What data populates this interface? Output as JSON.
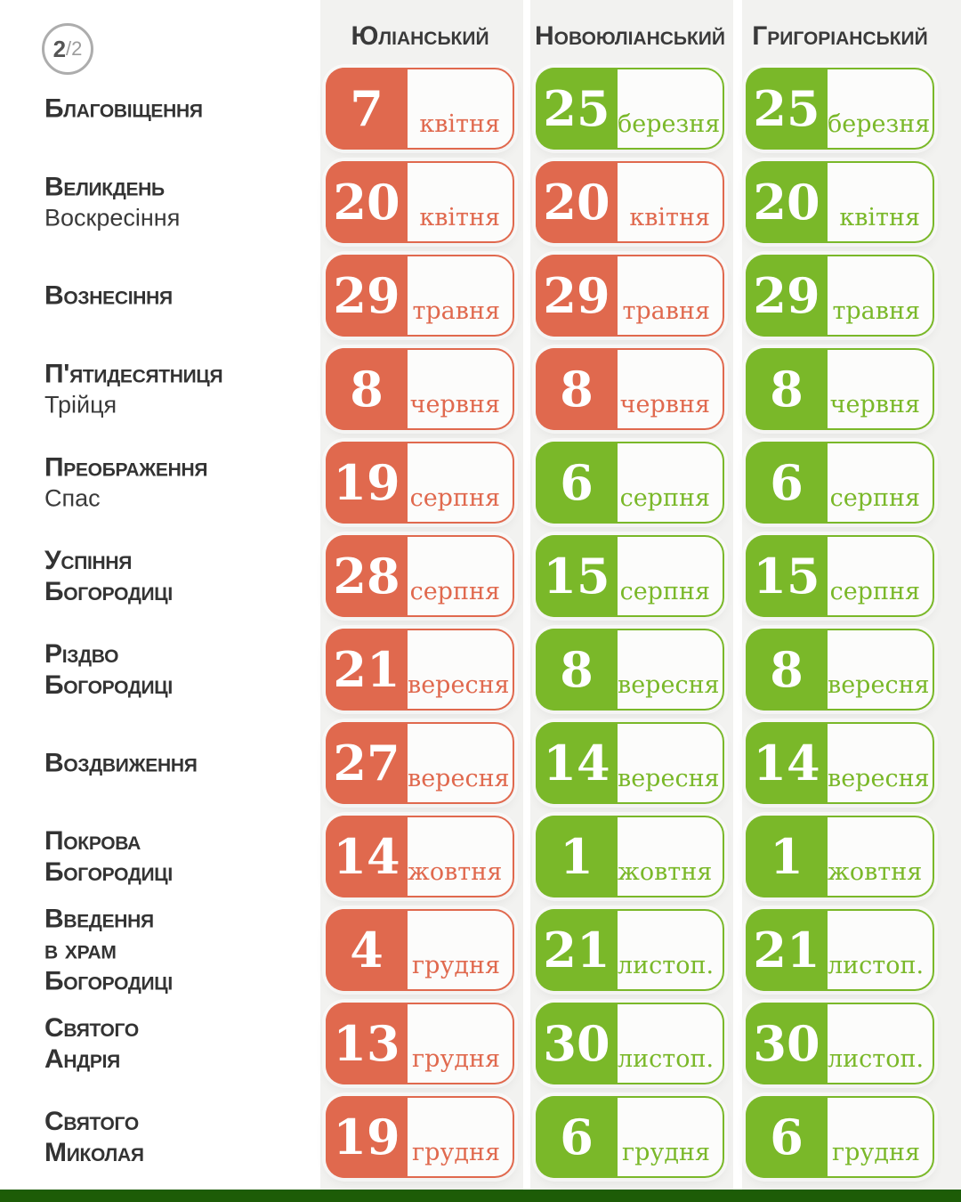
{
  "badge": {
    "page": "2",
    "rest": "/2"
  },
  "columns": [
    {
      "id": "julian",
      "label": "Юліанський"
    },
    {
      "id": "new-julian",
      "label": "Новоюліанський"
    },
    {
      "id": "gregorian",
      "label": "Григоріанський"
    }
  ],
  "colors": {
    "red": "#E0694E",
    "green": "#7AB829",
    "strip": "#F2F2F0",
    "footer_bar": "#1D5C07",
    "text": "#333333"
  },
  "rows": [
    {
      "name_lines": [
        "Благовіщення"
      ],
      "subtitle": "",
      "cells": [
        {
          "day": "7",
          "month": "квітня",
          "color": "red"
        },
        {
          "day": "25",
          "month": "березня",
          "color": "green"
        },
        {
          "day": "25",
          "month": "березня",
          "color": "green"
        }
      ]
    },
    {
      "name_lines": [
        "Великдень"
      ],
      "subtitle": "Воскресіння",
      "cells": [
        {
          "day": "20",
          "month": "квітня",
          "color": "red"
        },
        {
          "day": "20",
          "month": "квітня",
          "color": "red"
        },
        {
          "day": "20",
          "month": "квітня",
          "color": "green"
        }
      ]
    },
    {
      "name_lines": [
        "Вознесіння"
      ],
      "subtitle": "",
      "cells": [
        {
          "day": "29",
          "month": "травня",
          "color": "red"
        },
        {
          "day": "29",
          "month": "травня",
          "color": "red"
        },
        {
          "day": "29",
          "month": "травня",
          "color": "green"
        }
      ]
    },
    {
      "name_lines": [
        "П'ятидесятниця"
      ],
      "subtitle": "Трійця",
      "cells": [
        {
          "day": "8",
          "month": "червня",
          "color": "red"
        },
        {
          "day": "8",
          "month": "червня",
          "color": "red"
        },
        {
          "day": "8",
          "month": "червня",
          "color": "green"
        }
      ]
    },
    {
      "name_lines": [
        "Преображення"
      ],
      "subtitle": "Спас",
      "cells": [
        {
          "day": "19",
          "month": "серпня",
          "color": "red"
        },
        {
          "day": "6",
          "month": "серпня",
          "color": "green"
        },
        {
          "day": "6",
          "month": "серпня",
          "color": "green"
        }
      ]
    },
    {
      "name_lines": [
        "Успіння",
        "Богородиці"
      ],
      "subtitle": "",
      "cells": [
        {
          "day": "28",
          "month": "серпня",
          "color": "red"
        },
        {
          "day": "15",
          "month": "серпня",
          "color": "green"
        },
        {
          "day": "15",
          "month": "серпня",
          "color": "green"
        }
      ]
    },
    {
      "name_lines": [
        "Різдво",
        "Богородиці"
      ],
      "subtitle": "",
      "cells": [
        {
          "day": "21",
          "month": "вересня",
          "color": "red"
        },
        {
          "day": "8",
          "month": "вересня",
          "color": "green"
        },
        {
          "day": "8",
          "month": "вересня",
          "color": "green"
        }
      ]
    },
    {
      "name_lines": [
        "Воздвиження"
      ],
      "subtitle": "",
      "cells": [
        {
          "day": "27",
          "month": "вересня",
          "color": "red"
        },
        {
          "day": "14",
          "month": "вересня",
          "color": "green"
        },
        {
          "day": "14",
          "month": "вересня",
          "color": "green"
        }
      ]
    },
    {
      "name_lines": [
        "Покрова",
        "Богородиці"
      ],
      "subtitle": "",
      "cells": [
        {
          "day": "14",
          "month": "жовтня",
          "color": "red"
        },
        {
          "day": "1",
          "month": "жовтня",
          "color": "green"
        },
        {
          "day": "1",
          "month": "жовтня",
          "color": "green"
        }
      ]
    },
    {
      "name_lines": [
        "Введення",
        "в храм",
        "Богородиці"
      ],
      "subtitle": "",
      "cells": [
        {
          "day": "4",
          "month": "грудня",
          "color": "red"
        },
        {
          "day": "21",
          "month": "листоп.",
          "color": "green"
        },
        {
          "day": "21",
          "month": "листоп.",
          "color": "green"
        }
      ]
    },
    {
      "name_lines": [
        "Святого",
        "Андрія"
      ],
      "subtitle": "",
      "cells": [
        {
          "day": "13",
          "month": "грудня",
          "color": "red"
        },
        {
          "day": "30",
          "month": "листоп.",
          "color": "green"
        },
        {
          "day": "30",
          "month": "листоп.",
          "color": "green"
        }
      ]
    },
    {
      "name_lines": [
        "Святого",
        "Миколая"
      ],
      "subtitle": "",
      "cells": [
        {
          "day": "19",
          "month": "грудня",
          "color": "red"
        },
        {
          "day": "6",
          "month": "грудня",
          "color": "green"
        },
        {
          "day": "6",
          "month": "грудня",
          "color": "green"
        }
      ]
    }
  ]
}
